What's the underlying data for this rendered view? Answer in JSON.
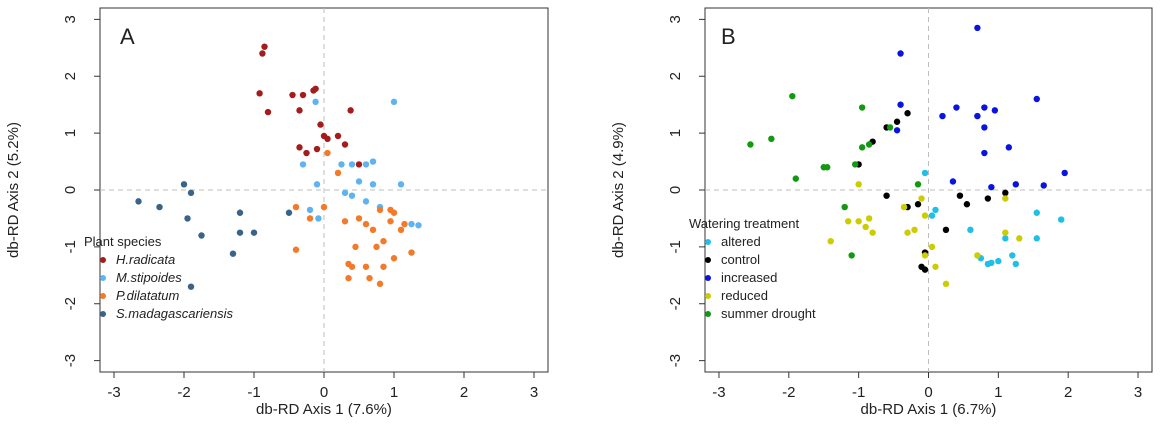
{
  "chart_data": [
    {
      "type": "scatter",
      "panel_label": "A",
      "xlabel": "db-RD Axis 1 (7.6%)",
      "ylabel": "db-RD Axis 2 (5.2%)",
      "xlim": [
        -3.2,
        3.2
      ],
      "ylim": [
        -3.2,
        3.2
      ],
      "xticks": [
        "-3",
        "-2",
        "-1",
        "0",
        "1",
        "2",
        "3"
      ],
      "yticks": [
        "-3",
        "-2",
        "-1",
        "0",
        "1",
        "2",
        "3"
      ],
      "grid": false,
      "reference_lines": [
        0,
        0
      ],
      "legend": {
        "title": "Plant species",
        "position": "bottom-left"
      },
      "series": [
        {
          "name": "H.radicata",
          "color": "#a51c1c",
          "points": [
            [
              -0.85,
              2.52
            ],
            [
              -0.88,
              2.4
            ],
            [
              -0.92,
              1.7
            ],
            [
              -0.8,
              1.37
            ],
            [
              -0.45,
              1.67
            ],
            [
              -0.3,
              1.67
            ],
            [
              -0.15,
              1.75
            ],
            [
              -0.12,
              1.78
            ],
            [
              -0.35,
              1.4
            ],
            [
              0.38,
              1.4
            ],
            [
              -0.05,
              1.15
            ],
            [
              -0.35,
              0.75
            ],
            [
              -0.25,
              0.65
            ],
            [
              0.0,
              0.95
            ],
            [
              0.05,
              0.9
            ],
            [
              -0.1,
              0.72
            ],
            [
              0.2,
              0.95
            ],
            [
              0.3,
              0.8
            ],
            [
              0.5,
              0.45
            ]
          ]
        },
        {
          "name": "M.stipoides",
          "color": "#5eb3f0",
          "points": [
            [
              -0.12,
              1.55
            ],
            [
              1.0,
              1.55
            ],
            [
              0.7,
              0.5
            ],
            [
              0.6,
              0.45
            ],
            [
              0.4,
              0.45
            ],
            [
              0.5,
              0.15
            ],
            [
              0.7,
              0.1
            ],
            [
              1.1,
              0.1
            ],
            [
              0.3,
              -0.05
            ],
            [
              0.4,
              -0.1
            ],
            [
              0.6,
              -0.2
            ],
            [
              0.8,
              -0.3
            ],
            [
              1.35,
              -0.62
            ],
            [
              1.25,
              -0.6
            ],
            [
              0.25,
              0.45
            ],
            [
              -0.3,
              0.45
            ],
            [
              -0.1,
              0.1
            ],
            [
              -0.2,
              -0.35
            ],
            [
              -0.08,
              -0.5
            ]
          ]
        },
        {
          "name": "P.dilatatum",
          "color": "#f27a2a",
          "points": [
            [
              0.05,
              0.65
            ],
            [
              0.2,
              0.3
            ],
            [
              -0.4,
              -0.3
            ],
            [
              -0.2,
              -0.5
            ],
            [
              0.0,
              -0.3
            ],
            [
              0.3,
              -0.55
            ],
            [
              0.5,
              -0.5
            ],
            [
              0.6,
              -0.6
            ],
            [
              0.7,
              -0.7
            ],
            [
              0.8,
              -0.35
            ],
            [
              0.95,
              -0.35
            ],
            [
              1.0,
              -0.4
            ],
            [
              0.95,
              -0.55
            ],
            [
              1.15,
              -0.6
            ],
            [
              1.1,
              -0.7
            ],
            [
              0.85,
              -0.9
            ],
            [
              0.75,
              -1.0
            ],
            [
              0.45,
              -1.0
            ],
            [
              0.35,
              -1.3
            ],
            [
              0.4,
              -1.35
            ],
            [
              0.6,
              -1.35
            ],
            [
              1.0,
              -1.2
            ],
            [
              1.25,
              -1.1
            ],
            [
              0.85,
              -1.35
            ],
            [
              0.65,
              -1.55
            ],
            [
              0.35,
              -1.55
            ],
            [
              0.8,
              -1.65
            ],
            [
              -0.4,
              -1.05
            ]
          ]
        },
        {
          "name": "S.madagascariensis",
          "color": "#3a6389",
          "points": [
            [
              -2.65,
              -0.2
            ],
            [
              -2.35,
              -0.3
            ],
            [
              -2.0,
              0.1
            ],
            [
              -1.9,
              -0.05
            ],
            [
              -1.95,
              -0.5
            ],
            [
              -1.75,
              -0.8
            ],
            [
              -1.2,
              -0.4
            ],
            [
              -1.2,
              -0.75
            ],
            [
              -1.0,
              -0.75
            ],
            [
              -0.5,
              -0.4
            ],
            [
              -1.3,
              -1.12
            ],
            [
              -1.9,
              -1.7
            ]
          ]
        }
      ]
    },
    {
      "type": "scatter",
      "panel_label": "B",
      "xlabel": "db-RD Axis 1 (6.7%)",
      "ylabel": "db-RD Axis 2 (4.9%)",
      "xlim": [
        -3.2,
        3.2
      ],
      "ylim": [
        -3.2,
        3.2
      ],
      "xticks": [
        "-3",
        "-2",
        "-1",
        "0",
        "1",
        "2",
        "3"
      ],
      "yticks": [
        "-3",
        "-2",
        "-1",
        "0",
        "1",
        "2",
        "3"
      ],
      "grid": false,
      "reference_lines": [
        0,
        0
      ],
      "legend": {
        "title": "Watering treatment",
        "position": "bottom-left"
      },
      "series": [
        {
          "name": "altered",
          "color": "#1fbfe8",
          "points": [
            [
              -0.05,
              0.3
            ],
            [
              0.05,
              -0.45
            ],
            [
              0.1,
              -0.35
            ],
            [
              0.6,
              -0.7
            ],
            [
              0.75,
              -1.2
            ],
            [
              0.85,
              -1.3
            ],
            [
              0.9,
              -1.28
            ],
            [
              1.0,
              -1.25
            ],
            [
              1.1,
              -0.85
            ],
            [
              1.2,
              -1.15
            ],
            [
              1.25,
              -1.3
            ],
            [
              1.55,
              -0.4
            ],
            [
              1.55,
              -0.85
            ],
            [
              1.9,
              -0.52
            ]
          ]
        },
        {
          "name": "control",
          "color": "#000000",
          "points": [
            [
              -0.3,
              1.35
            ],
            [
              -0.45,
              1.2
            ],
            [
              -0.6,
              1.1
            ],
            [
              -0.8,
              0.85
            ],
            [
              -1.0,
              0.45
            ],
            [
              -0.6,
              -0.1
            ],
            [
              -0.3,
              -0.3
            ],
            [
              -0.15,
              -0.25
            ],
            [
              0.25,
              -0.7
            ],
            [
              0.45,
              -0.1
            ],
            [
              0.55,
              -0.25
            ],
            [
              0.85,
              -0.15
            ],
            [
              1.1,
              -0.05
            ],
            [
              -0.05,
              -1.1
            ],
            [
              -0.1,
              -1.35
            ],
            [
              -0.05,
              -1.4
            ]
          ]
        },
        {
          "name": "increased",
          "color": "#0a14e0",
          "points": [
            [
              0.7,
              2.85
            ],
            [
              -0.4,
              2.4
            ],
            [
              -0.4,
              1.5
            ],
            [
              0.2,
              1.3
            ],
            [
              0.4,
              1.45
            ],
            [
              0.7,
              1.3
            ],
            [
              0.8,
              1.45
            ],
            [
              0.95,
              1.4
            ],
            [
              1.55,
              1.6
            ],
            [
              0.8,
              1.1
            ],
            [
              0.8,
              0.65
            ],
            [
              1.15,
              0.75
            ],
            [
              1.95,
              0.3
            ],
            [
              -0.45,
              1.05
            ],
            [
              0.35,
              0.15
            ],
            [
              1.25,
              0.1
            ],
            [
              1.65,
              0.08
            ],
            [
              0.9,
              0.05
            ]
          ]
        },
        {
          "name": "reduced",
          "color": "#cccc00",
          "points": [
            [
              -1.0,
              0.1
            ],
            [
              -1.15,
              -0.55
            ],
            [
              -1.0,
              -0.55
            ],
            [
              -0.9,
              -0.65
            ],
            [
              -0.85,
              -0.5
            ],
            [
              -0.8,
              -0.75
            ],
            [
              -0.35,
              -0.3
            ],
            [
              -0.3,
              -0.75
            ],
            [
              -0.2,
              -0.7
            ],
            [
              -0.1,
              -0.15
            ],
            [
              -0.05,
              -0.45
            ],
            [
              0.05,
              -1.0
            ],
            [
              0.1,
              -1.35
            ],
            [
              -0.05,
              -1.15
            ],
            [
              0.25,
              -1.65
            ],
            [
              0.7,
              -1.15
            ],
            [
              1.1,
              -0.75
            ],
            [
              1.1,
              -0.15
            ],
            [
              1.3,
              -0.85
            ],
            [
              -1.4,
              -0.9
            ]
          ]
        },
        {
          "name": "summer drought",
          "color": "#119a11",
          "points": [
            [
              -2.55,
              0.8
            ],
            [
              -2.25,
              0.9
            ],
            [
              -1.95,
              1.65
            ],
            [
              -1.9,
              0.2
            ],
            [
              -1.45,
              0.4
            ],
            [
              -1.5,
              0.4
            ],
            [
              -1.05,
              0.45
            ],
            [
              -0.95,
              0.75
            ],
            [
              -0.95,
              1.45
            ],
            [
              -0.85,
              0.8
            ],
            [
              -0.55,
              1.1
            ],
            [
              -0.15,
              0.1
            ],
            [
              -1.2,
              -0.3
            ],
            [
              -1.1,
              -1.15
            ]
          ]
        }
      ]
    }
  ]
}
